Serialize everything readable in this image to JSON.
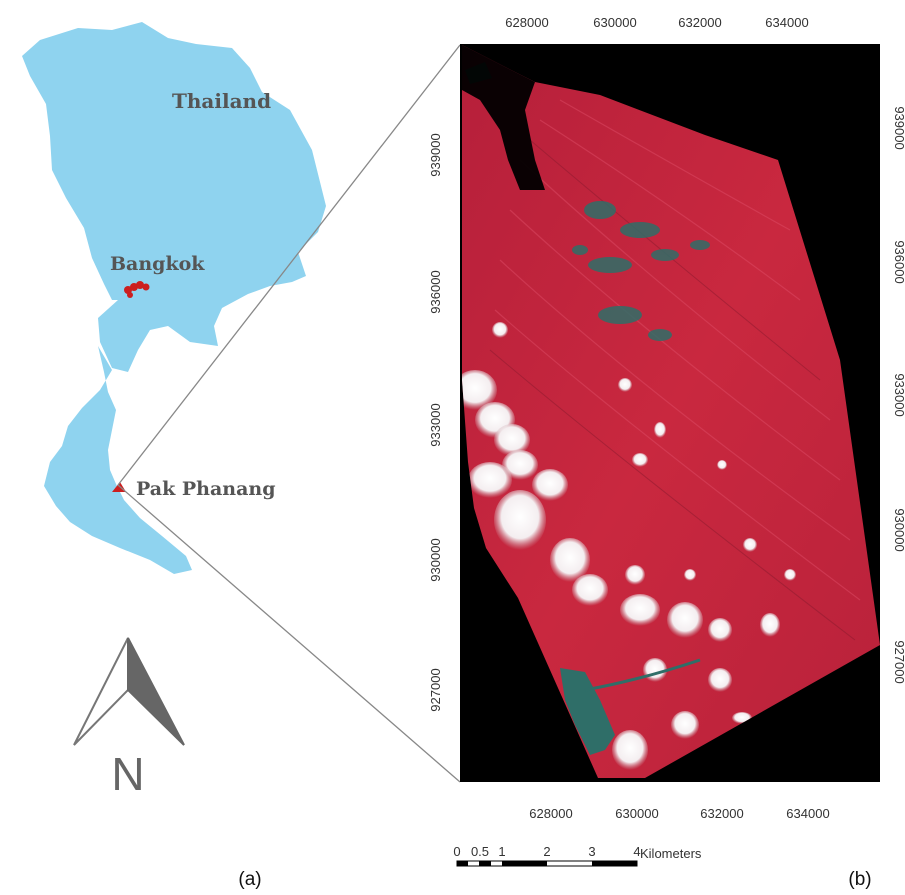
{
  "panel_a": {
    "country_label": "Thailand",
    "city_label": "Bangkok",
    "site_label": "Pak Phanang",
    "north_letter": "N",
    "caption": "(a)"
  },
  "panel_b": {
    "caption": "(b)",
    "x_ticks": [
      "628000",
      "630000",
      "632000",
      "634000"
    ],
    "y_ticks": [
      "939000",
      "936000",
      "933000",
      "930000",
      "927000"
    ],
    "scale_bar": {
      "labels": [
        "0",
        "0.5",
        "1",
        "2",
        "3",
        "4"
      ],
      "unit": "Kilometers"
    }
  },
  "colors": {
    "land": "#8fd3ef",
    "marker": "#cc1f1f",
    "vegetation_red": "#c8283f",
    "water_teal": "#2f6e68",
    "cloud": "#ffffff",
    "background_black": "#000000"
  }
}
